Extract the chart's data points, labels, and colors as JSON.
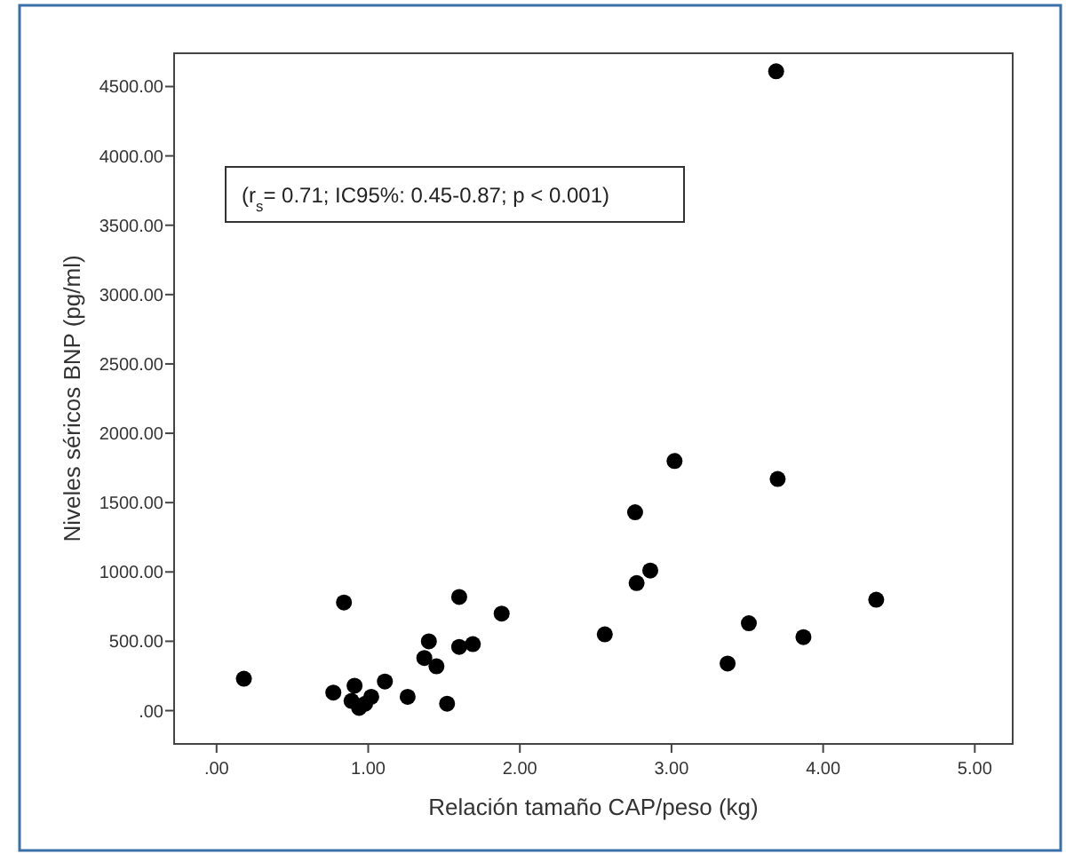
{
  "chart_data": {
    "type": "scatter",
    "xlabel": "Relación tamaño CAP/peso (kg)",
    "ylabel": "Niveles séricos BNP (pg/ml)",
    "annotations": [
      "(r$_{s}$= 0.71; IC95%: 0.45-0.87; p < 0.001)"
    ],
    "x": [
      0.18,
      0.84,
      0.77,
      0.91,
      0.89,
      0.94,
      0.98,
      1.02,
      1.11,
      1.26,
      1.37,
      1.4,
      1.45,
      1.52,
      1.6,
      1.6,
      1.69,
      1.88,
      2.56,
      2.76,
      2.77,
      2.86,
      3.02,
      3.69,
      3.7,
      3.37,
      3.51,
      3.87,
      4.35
    ],
    "values": [
      230,
      780,
      130,
      180,
      70,
      20,
      50,
      100,
      210,
      100,
      380,
      500,
      320,
      50,
      820,
      460,
      480,
      700,
      550,
      1430,
      920,
      1010,
      1800,
      4610,
      1670,
      340,
      630,
      530,
      800
    ],
    "color": "#000000",
    "marker": "circle",
    "grid": false,
    "xlim": [
      -0.28,
      5.25
    ],
    "ylim": [
      -240,
      4740
    ],
    "xticks": [
      {
        "value": 0,
        "label": ".00"
      },
      {
        "value": 1,
        "label": "1.00"
      },
      {
        "value": 2,
        "label": "2.00"
      },
      {
        "value": 3,
        "label": "3.00"
      },
      {
        "value": 4,
        "label": "4.00"
      },
      {
        "value": 5,
        "label": "5.00"
      }
    ],
    "yticks": [
      {
        "value": 0,
        "label": ".00"
      },
      {
        "value": 500,
        "label": "500.00"
      },
      {
        "value": 1000,
        "label": "1000.00"
      },
      {
        "value": 1500,
        "label": "1500.00"
      },
      {
        "value": 2000,
        "label": "2000.00"
      },
      {
        "value": 2500,
        "label": "2500.00"
      },
      {
        "value": 3000,
        "label": "3000.00"
      },
      {
        "value": 3500,
        "label": "3500.00"
      },
      {
        "value": 4000,
        "label": "4000.00"
      },
      {
        "value": 4500,
        "label": "4500.00"
      }
    ]
  }
}
